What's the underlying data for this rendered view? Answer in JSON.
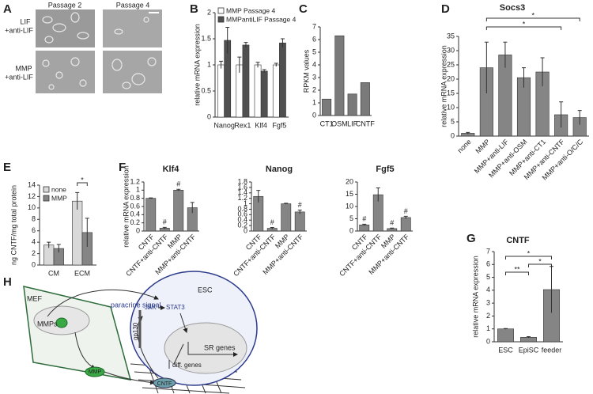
{
  "panel_A": {
    "label": "A",
    "columns": [
      "Passage 2",
      "Passage 4"
    ],
    "rows": [
      [
        "LIF",
        "+anti-LIF"
      ],
      [
        "MMP",
        "+anti-LIF"
      ]
    ]
  },
  "chart_data": [
    {
      "type": "bar",
      "panel": "B",
      "ylabel": "relative mRNA expression",
      "categories": [
        "Nanog",
        "Rex1",
        "Klf4",
        "Fgf5"
      ],
      "series": [
        {
          "name": "MMP Passage 4",
          "color": "#ffffff",
          "values": [
            1,
            1,
            1,
            1
          ],
          "errors": [
            0.07,
            0.15,
            0.05,
            0.03
          ]
        },
        {
          "name": "MMPantiLIF Passage 4",
          "color": "#505050",
          "values": [
            1.47,
            1.38,
            0.88,
            1.42
          ],
          "errors": [
            0.25,
            0.05,
            0.03,
            0.08
          ]
        }
      ],
      "ylim": [
        0,
        2
      ],
      "yticks": [
        0,
        0.5,
        1,
        1.5,
        2
      ]
    },
    {
      "type": "bar",
      "panel": "C",
      "ylabel": "RPKM values",
      "categories": [
        "CT1",
        "OSM",
        "LIF",
        "CNTF"
      ],
      "values": [
        1.3,
        6.3,
        1.7,
        2.6
      ],
      "color": "#7a7a7a",
      "ylim": [
        0,
        7
      ],
      "yticks": [
        0,
        1,
        2,
        3,
        4,
        5,
        6,
        7
      ]
    },
    {
      "type": "bar",
      "panel": "D",
      "title": "Socs3",
      "ylabel": "relative mRNA expression",
      "categories": [
        "none",
        "MMP",
        "MMP+anti-LIF",
        "MMP+anti-OSM",
        "MMP+anti-CT1",
        "MMP+anti-CNTF",
        "MMP+anti-O/C/C"
      ],
      "values": [
        1,
        24,
        28.5,
        20.5,
        22.5,
        7.5,
        6.5
      ],
      "errors": [
        0.3,
        9,
        4.5,
        3.5,
        5,
        4.5,
        2.5
      ],
      "color": "#858585",
      "ylim": [
        0,
        35
      ],
      "yticks": [
        0,
        5,
        10,
        15,
        20,
        25,
        30,
        35
      ],
      "significance": [
        {
          "between": [
            1,
            5
          ],
          "label": "*"
        },
        {
          "between": [
            1,
            6
          ],
          "label": "*"
        }
      ]
    },
    {
      "type": "bar",
      "panel": "E",
      "ylabel": "ng CNTF/mg total protein",
      "categories": [
        "CM",
        "ECM"
      ],
      "series": [
        {
          "name": "none",
          "color": "#d9d9d9",
          "values": [
            3.5,
            11.2
          ],
          "errors": [
            0.5,
            1.5
          ]
        },
        {
          "name": "MMP",
          "color": "#858585",
          "values": [
            2.9,
            5.7
          ],
          "errors": [
            0.7,
            2.5
          ]
        }
      ],
      "ylim": [
        0,
        14
      ],
      "yticks": [
        0,
        2,
        4,
        6,
        8,
        10,
        12,
        14
      ],
      "significance": [
        {
          "between": [
            2,
            3
          ],
          "label": "*"
        }
      ]
    },
    {
      "type": "bar",
      "panel": "F",
      "title": "Klf4",
      "ylabel": "relative mRNA expression",
      "categories": [
        "CNTF",
        "CNTF+anti-CNTF",
        "MMP",
        "MMP+anti-CNTF"
      ],
      "values": [
        0.8,
        0.07,
        1.0,
        0.57
      ],
      "errors": [
        0.01,
        0.02,
        0.02,
        0.13
      ],
      "color": "#858585",
      "markers": [
        null,
        "#",
        "#",
        null
      ],
      "ylim": [
        0,
        1.2
      ],
      "yticks": [
        0,
        0.2,
        0.4,
        0.6,
        0.8,
        1,
        1.2
      ]
    },
    {
      "type": "bar",
      "title": "Nanog",
      "categories": [
        "CNTF",
        "CNTF+anti-CNTF",
        "MMP",
        "MMP+anti-CNTF"
      ],
      "values": [
        1.27,
        0.1,
        1.0,
        0.7
      ],
      "errors": [
        0.22,
        0.03,
        0.02,
        0.07
      ],
      "color": "#858585",
      "markers": [
        null,
        "#",
        null,
        "#"
      ],
      "ylim": [
        0,
        1.8
      ],
      "yticks": [
        0,
        0.2,
        0.4,
        0.6,
        0.8,
        1,
        1.2,
        1.4,
        1.6,
        1.8
      ]
    },
    {
      "type": "bar",
      "title": "Fgf5",
      "categories": [
        "CNTF",
        "CNTF+anti-CNTF",
        "MMP",
        "MMP+anti-CNTF"
      ],
      "values": [
        2.5,
        14.8,
        1.0,
        5.5
      ],
      "errors": [
        0.3,
        2.8,
        0.2,
        0.5
      ],
      "color": "#858585",
      "markers": [
        "#",
        null,
        "#",
        "#"
      ],
      "ylim": [
        0,
        20
      ],
      "yticks": [
        0,
        5,
        10,
        15,
        20
      ]
    },
    {
      "type": "bar",
      "panel": "G",
      "title": "CNTF",
      "ylabel": "relative mRNA expression",
      "categories": [
        "ESC",
        "EpiSC",
        "feeder"
      ],
      "values": [
        1,
        0.35,
        4.05
      ],
      "errors": [
        0.03,
        0.05,
        1.8
      ],
      "color": "#858585",
      "ylim": [
        0,
        7
      ],
      "yticks": [
        0,
        1,
        2,
        3,
        4,
        5,
        6,
        7
      ],
      "significance": [
        {
          "between": [
            0,
            1
          ],
          "label": "**"
        },
        {
          "between": [
            1,
            2
          ],
          "label": "*"
        },
        {
          "between": [
            0,
            2
          ],
          "label": "*"
        }
      ]
    }
  ],
  "panel_H": {
    "label": "H",
    "mef": "MEF",
    "paracrine": "paracrine signal",
    "esc": "ESC",
    "mmps": "MMPs",
    "jak": "JAK",
    "stat3": "STAT3",
    "gp130": "gp130",
    "sr": "SR genes",
    "diff": "diff. genes",
    "mmp": "MMP",
    "cntf": "CNTF"
  }
}
